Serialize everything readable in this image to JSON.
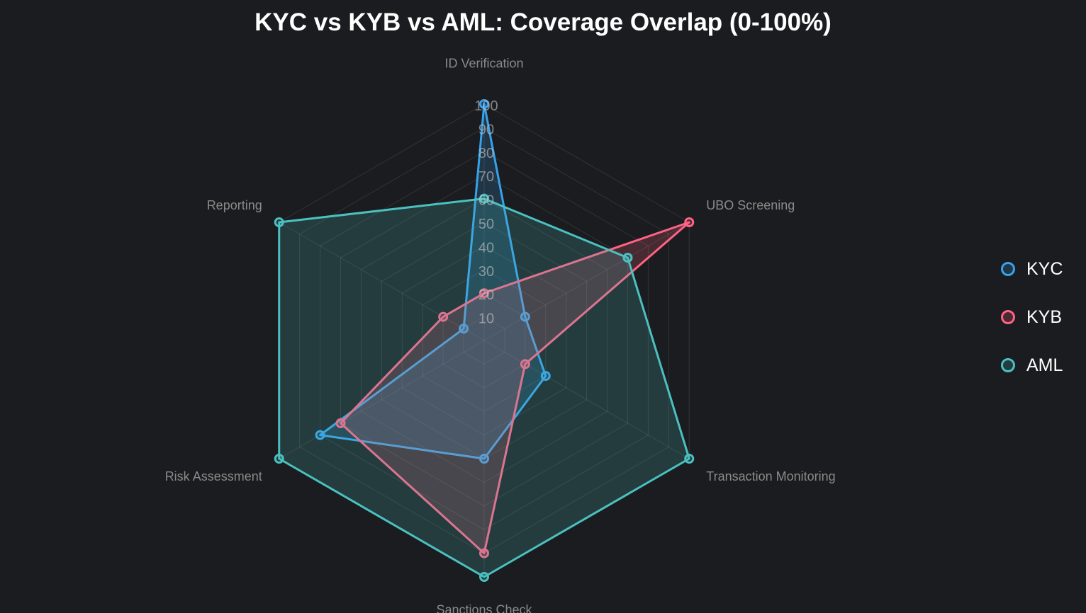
{
  "chart_data": {
    "type": "radar",
    "title": "KYC vs KYB vs AML: Coverage Overlap (0-100%)",
    "categories": [
      "ID Verification",
      "UBO Screening",
      "Transaction Monitoring",
      "Sanctions Check",
      "Risk Assessment",
      "Reporting"
    ],
    "rlim": [
      0,
      100
    ],
    "ticks": [
      "10",
      "20",
      "30",
      "40",
      "50",
      "60",
      "70",
      "80",
      "90",
      "100"
    ],
    "grid": true,
    "legend_position": "right",
    "series": [
      {
        "name": "KYC",
        "color": "#36a2eb",
        "fill": "rgba(54,162,235,0.2)",
        "values": [
          100,
          20,
          30,
          50,
          80,
          10
        ]
      },
      {
        "name": "KYB",
        "color": "#ff6384",
        "fill": "rgba(255,99,132,0.2)",
        "values": [
          20,
          100,
          20,
          90,
          70,
          20
        ]
      },
      {
        "name": "AML",
        "color": "#4bc0c0",
        "fill": "rgba(75,192,192,0.2)",
        "values": [
          60,
          70,
          100,
          100,
          100,
          100
        ]
      }
    ]
  }
}
